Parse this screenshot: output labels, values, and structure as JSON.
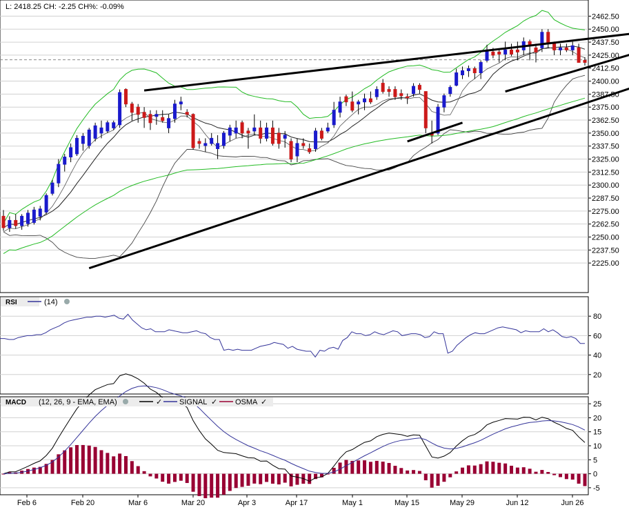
{
  "chart_data": {
    "type": "candlestick",
    "status_line": "L: 2418.25 CH: -2.25 CH%: -0.09%",
    "x_ticks": [
      "Feb 6",
      "Feb 20",
      "Mar 6",
      "Mar 20",
      "Apr 3",
      "Apr 17",
      "May 1",
      "May 15",
      "May 29",
      "Jun 12",
      "Jun 26"
    ],
    "price": {
      "ylim": [
        2212.5,
        2468.75
      ],
      "y_ticks": [
        "2462.50",
        "2450.00",
        "2437.50",
        "2425.00",
        "2412.50",
        "2400.00",
        "2387.50",
        "2375.00",
        "2362.50",
        "2350.00",
        "2337.50",
        "2325.00",
        "2312.50",
        "2300.00",
        "2287.50",
        "2275.00",
        "2262.50",
        "2250.00",
        "2237.50",
        "2225.00"
      ],
      "last_close_reference": 2420.5,
      "candles_ohlc": [
        [
          2270,
          2276,
          2256,
          2259
        ],
        [
          2259,
          2270,
          2255,
          2266
        ],
        [
          2266,
          2272,
          2258,
          2261
        ],
        [
          2261,
          2272,
          2257,
          2270
        ],
        [
          2263,
          2276,
          2260,
          2273
        ],
        [
          2264,
          2279,
          2262,
          2276
        ],
        [
          2270,
          2280,
          2266,
          2277
        ],
        [
          2274,
          2292,
          2272,
          2290
        ],
        [
          2292,
          2305,
          2290,
          2302
        ],
        [
          2302,
          2325,
          2298,
          2320
        ],
        [
          2320,
          2330,
          2313,
          2327
        ],
        [
          2327,
          2340,
          2322,
          2336
        ],
        [
          2330,
          2348,
          2328,
          2345
        ],
        [
          2340,
          2350,
          2333,
          2347
        ],
        [
          2338,
          2355,
          2335,
          2353
        ],
        [
          2345,
          2360,
          2342,
          2357
        ],
        [
          2350,
          2362,
          2345,
          2355
        ],
        [
          2352,
          2362,
          2350,
          2360
        ],
        [
          2355,
          2362,
          2353,
          2360
        ],
        [
          2358,
          2392,
          2355,
          2389
        ],
        [
          2392,
          2393,
          2375,
          2378
        ],
        [
          2378,
          2380,
          2362,
          2370
        ],
        [
          2375,
          2378,
          2360,
          2368
        ],
        [
          2370,
          2375,
          2355,
          2365
        ],
        [
          2368,
          2372,
          2353,
          2360
        ],
        [
          2366,
          2372,
          2358,
          2368
        ],
        [
          2365,
          2372,
          2360,
          2362
        ],
        [
          2355,
          2368,
          2350,
          2364
        ],
        [
          2364,
          2382,
          2360,
          2378
        ],
        [
          2378,
          2385,
          2372,
          2380
        ],
        [
          2370,
          2373,
          2365,
          2368
        ],
        [
          2368,
          2369,
          2334,
          2336
        ],
        [
          2342,
          2345,
          2335,
          2340
        ],
        [
          2338,
          2345,
          2332,
          2340
        ],
        [
          2340,
          2350,
          2338,
          2345
        ],
        [
          2335,
          2348,
          2325,
          2340
        ],
        [
          2338,
          2352,
          2335,
          2350
        ],
        [
          2348,
          2358,
          2342,
          2355
        ],
        [
          2350,
          2362,
          2345,
          2355
        ],
        [
          2360,
          2362,
          2345,
          2350
        ],
        [
          2352,
          2355,
          2335,
          2350
        ],
        [
          2352,
          2368,
          2348,
          2355
        ],
        [
          2355,
          2362,
          2340,
          2345
        ],
        [
          2345,
          2360,
          2342,
          2355
        ],
        [
          2355,
          2362,
          2338,
          2340
        ],
        [
          2350,
          2355,
          2335,
          2340
        ],
        [
          2345,
          2352,
          2336,
          2348
        ],
        [
          2342,
          2345,
          2322,
          2325
        ],
        [
          2328,
          2345,
          2322,
          2340
        ],
        [
          2340,
          2345,
          2335,
          2338
        ],
        [
          2335,
          2340,
          2330,
          2332
        ],
        [
          2335,
          2355,
          2332,
          2352
        ],
        [
          2352,
          2355,
          2343,
          2345
        ],
        [
          2352,
          2360,
          2350,
          2355
        ],
        [
          2358,
          2380,
          2355,
          2372
        ],
        [
          2370,
          2385,
          2365,
          2380
        ],
        [
          2385,
          2387,
          2376,
          2380
        ],
        [
          2380,
          2390,
          2370,
          2372
        ],
        [
          2378,
          2382,
          2368,
          2380
        ],
        [
          2380,
          2388,
          2372,
          2383
        ],
        [
          2383,
          2390,
          2378,
          2380
        ],
        [
          2385,
          2395,
          2382,
          2392
        ],
        [
          2398,
          2402,
          2388,
          2390
        ],
        [
          2392,
          2395,
          2385,
          2390
        ],
        [
          2392,
          2395,
          2382,
          2385
        ],
        [
          2388,
          2392,
          2382,
          2386
        ],
        [
          2385,
          2388,
          2378,
          2384
        ],
        [
          2388,
          2398,
          2385,
          2395
        ],
        [
          2396,
          2398,
          2388,
          2392
        ],
        [
          2390,
          2390,
          2350,
          2355
        ],
        [
          2350,
          2362,
          2340,
          2348
        ],
        [
          2350,
          2378,
          2348,
          2375
        ],
        [
          2375,
          2388,
          2370,
          2386
        ],
        [
          2388,
          2396,
          2385,
          2394
        ],
        [
          2396,
          2412,
          2395,
          2408
        ],
        [
          2406,
          2414,
          2402,
          2410
        ],
        [
          2410,
          2415,
          2404,
          2412
        ],
        [
          2412,
          2414,
          2402,
          2408
        ],
        [
          2408,
          2420,
          2402,
          2418
        ],
        [
          2420,
          2435,
          2418,
          2430
        ],
        [
          2428,
          2432,
          2422,
          2425
        ],
        [
          2428,
          2430,
          2418,
          2426
        ],
        [
          2426,
          2438,
          2420,
          2430
        ],
        [
          2430,
          2436,
          2424,
          2426
        ],
        [
          2430,
          2438,
          2420,
          2428
        ],
        [
          2430,
          2442,
          2425,
          2438
        ],
        [
          2438,
          2440,
          2420,
          2434
        ],
        [
          2432,
          2436,
          2418,
          2428
        ],
        [
          2432,
          2450,
          2428,
          2447
        ],
        [
          2447,
          2450,
          2432,
          2436
        ],
        [
          2436,
          2438,
          2425,
          2430
        ],
        [
          2430,
          2436,
          2425,
          2432
        ],
        [
          2432,
          2436,
          2428,
          2430
        ],
        [
          2430,
          2438,
          2425,
          2434
        ],
        [
          2432,
          2436,
          2418,
          2418
        ],
        [
          2420,
          2423,
          2415,
          2418
        ]
      ],
      "moving_averages_light": "bollinger bands (upper/lower) and long moving average in green; short averages in dark grey",
      "trendlines": [
        {
          "from": [
            23,
            2391
          ],
          "to": [
            109,
            2450
          ]
        },
        {
          "from": [
            14,
            2220
          ],
          "to": [
            109,
            2406
          ]
        },
        {
          "from": [
            82,
            2390
          ],
          "to": [
            105,
            2430
          ]
        },
        {
          "from": [
            66,
            2342
          ],
          "to": [
            75,
            2360
          ]
        }
      ]
    },
    "rsi": {
      "label": "RSI",
      "param": "(14)",
      "ylim": [
        0,
        100
      ],
      "y_ticks": [
        "80",
        "60",
        "40",
        "20"
      ],
      "values": [
        57,
        57,
        56,
        56,
        58,
        59,
        60,
        60,
        61,
        61,
        63,
        66,
        68,
        70,
        73,
        75,
        76,
        77,
        78,
        79,
        79,
        80,
        80,
        79,
        80,
        81,
        78,
        77,
        82,
        76,
        72,
        68,
        66,
        67,
        64,
        64,
        64,
        66,
        65,
        64,
        63,
        63,
        64,
        65,
        63,
        62,
        58,
        56,
        56,
        45,
        46,
        45,
        46,
        45,
        45,
        45,
        47,
        49,
        50,
        51,
        53,
        52,
        51,
        47,
        49,
        46,
        45,
        44,
        44,
        38,
        45,
        44,
        47,
        48,
        46,
        55,
        58,
        64,
        62,
        62,
        60,
        61,
        64,
        62,
        61,
        63,
        65,
        64,
        60,
        61,
        62,
        62,
        61,
        58,
        59,
        64,
        62,
        62,
        42,
        44,
        50,
        54,
        58,
        61,
        63,
        62,
        62,
        64,
        66,
        68,
        69,
        68,
        67,
        66,
        63,
        65,
        64,
        64,
        64,
        67,
        64,
        66,
        63,
        59,
        58,
        59,
        57,
        52,
        52
      ]
    },
    "macd": {
      "label": "MACD",
      "param": "(12, 26, 9 - EMA, EMA)",
      "legend": [
        "SIGNAL",
        "OSMA"
      ],
      "ylim": [
        -7.5,
        27.5
      ],
      "y_ticks": [
        "25",
        "20",
        "15",
        "10",
        "5",
        "0",
        "-5"
      ],
      "line_color": "#000000",
      "signal_color": "#333399",
      "osma_color": "#990033"
    },
    "colors": {
      "up": "#1a1acc",
      "down": "#cc1a1a",
      "band": "#22bb22",
      "grid": "#d0d0d0",
      "frame": "#000000"
    }
  }
}
